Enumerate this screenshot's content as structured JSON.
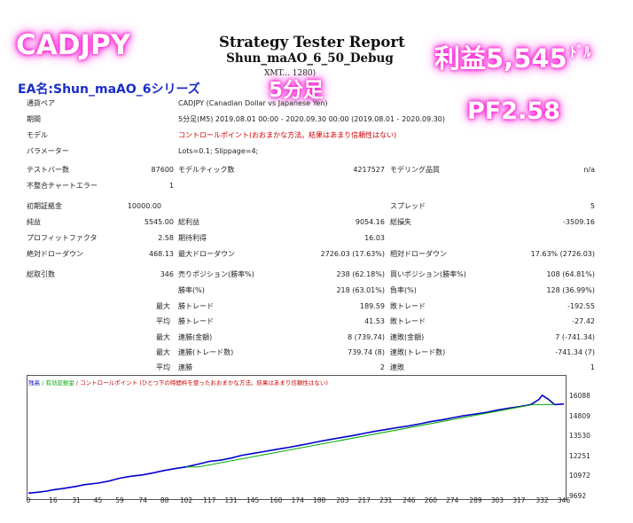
{
  "overlay": {
    "symbol": "CADJPY",
    "ea_name": "EA名:Shun_maAO_6シリーズ",
    "profit": "利益5,545",
    "profit_unit": "ﾄﾞﾙ",
    "timeframe": "5分足",
    "pf": "PF2.58",
    "glow_color": "#ff2bd6"
  },
  "header": {
    "title": "Strategy Tester Report",
    "subtitle": "Shun_maAO_6_50_Debug",
    "server": "XMT...  1280)"
  },
  "info": {
    "pair_label": "通貨ペア",
    "pair_value": "CADJPY (Canadian Dollar vs Japanese Yen)",
    "period_label": "期間",
    "period_value": "5分足(M5) 2019.08.01 00:00 - 2020.09.30 00:00 (2019.08.01 - 2020.09.30)",
    "model_label": "モデル",
    "model_value": "コントロールポイント(おおまかな方法。結果はあまり信頼性はない)",
    "param_label": "パラメーター",
    "param_value": "Lots=0.1; Slippage=4;",
    "bars_label": "テストバー数",
    "bars_value": "87600",
    "ticks_label": "モデルティック数",
    "ticks_value": "4217527",
    "quality_label": "モデリング品質",
    "quality_value": "n/a",
    "mismatch_label": "不整合チャートエラー",
    "mismatch_value": "1",
    "deposit_label": "初期証拠金",
    "deposit_value": "10000.00",
    "spread_label": "スプレッド",
    "spread_value": "5",
    "net_label": "純益",
    "net_value": "5545.00",
    "gross_profit_label": "総利益",
    "gross_profit_value": "9054.16",
    "gross_loss_label": "総損失",
    "gross_loss_value": "-3509.16",
    "pf_label": "プロフィットファクタ",
    "pf_value": "2.58",
    "expected_label": "期待利得",
    "expected_value": "16.03",
    "abs_dd_label": "絶対ドローダウン",
    "abs_dd_value": "468.13",
    "max_dd_label": "最大ドローダウン",
    "max_dd_value": "2726.03 (17.63%)",
    "rel_dd_label": "相対ドローダウン",
    "rel_dd_value": "17.63% (2726.03)",
    "trades_label": "総取引数",
    "trades_value": "346",
    "short_label": "売りポジション(勝率%)",
    "short_value": "238 (62.18%)",
    "long_label": "買いポジション(勝率%)",
    "long_value": "108 (64.81%)",
    "win_label": "勝率(%)",
    "win_value": "218 (63.01%)",
    "loss_label": "負率(%)",
    "loss_value": "128 (36.99%)",
    "max_label": "最大",
    "avg_label": "平均",
    "max_win_label": "勝トレード",
    "max_win_value": "189.59",
    "max_loss_label": "敗トレード",
    "max_loss_value": "-192.55",
    "avg_win_label": "勝トレード",
    "avg_win_value": "41.53",
    "avg_loss_label": "敗トレード",
    "avg_loss_value": "-27.42",
    "consec_win_money_label": "連勝(金額)",
    "consec_win_money_value": "8 (739.74)",
    "consec_loss_money_label": "連敗(金額)",
    "consec_loss_money_value": "7 (-741.34)",
    "consec_win_trades_label": "連勝(トレード数)",
    "consec_win_trades_value": "739.74 (8)",
    "consec_loss_trades_label": "連敗(トレード数)",
    "consec_loss_trades_value": "-741.34 (7)",
    "avg_consec_win_label": "連勝",
    "avg_consec_win_value": "2",
    "avg_consec_loss_label": "連敗",
    "avg_consec_loss_value": "1"
  },
  "chart_legend": {
    "balance": "残高",
    "equity": "/ 有効証拠金",
    "note": "/ コントロールポイント (ひとつ下の時間枠を使ったおおまかな方法。結果はあまり信頼性はない)",
    "balance_color": "#0000cc",
    "equity_color": "#00aa00",
    "note_color": "#cc0000"
  },
  "chart_data": {
    "type": "line",
    "title": "",
    "xlabel": "",
    "ylabel": "",
    "x_ticks": [
      "0",
      "16",
      "31",
      "45",
      "59",
      "74",
      "88",
      "102",
      "117",
      "131",
      "145",
      "160",
      "174",
      "188",
      "203",
      "217",
      "231",
      "246",
      "260",
      "274",
      "289",
      "303",
      "317",
      "332",
      "346"
    ],
    "y_ticks": [
      "16088",
      "14809",
      "13530",
      "12251",
      "10972",
      "9692"
    ],
    "xlim": [
      0,
      346
    ],
    "ylim": [
      9692,
      16600
    ],
    "series": [
      {
        "name": "残高",
        "color": "#0000cc",
        "x": [
          0,
          6,
          12,
          16,
          22,
          31,
          36,
          45,
          52,
          59,
          66,
          74,
          80,
          88,
          95,
          102,
          110,
          117,
          124,
          131,
          138,
          145,
          152,
          160,
          167,
          174,
          181,
          188,
          195,
          203,
          210,
          217,
          224,
          231,
          238,
          246,
          253,
          260,
          267,
          274,
          281,
          289,
          296,
          303,
          310,
          317,
          324,
          326,
          330,
          332,
          336,
          340,
          346
        ],
        "y": [
          9900,
          9960,
          10030,
          10110,
          10190,
          10330,
          10440,
          10540,
          10670,
          10850,
          10980,
          11070,
          11180,
          11350,
          11470,
          11580,
          11760,
          11930,
          12000,
          12140,
          12320,
          12430,
          12550,
          12690,
          12800,
          12930,
          13060,
          13200,
          13330,
          13470,
          13580,
          13720,
          13850,
          13960,
          14080,
          14200,
          14330,
          14470,
          14580,
          14710,
          14840,
          14960,
          15060,
          15200,
          15320,
          15420,
          15540,
          15640,
          15900,
          16150,
          15900,
          15560,
          15600
        ]
      },
      {
        "name": "有効証拠金",
        "color": "#00aa00",
        "x": [
          102,
          110,
          326,
          340
        ],
        "y": [
          11580,
          11580,
          15560,
          15560
        ]
      }
    ]
  }
}
